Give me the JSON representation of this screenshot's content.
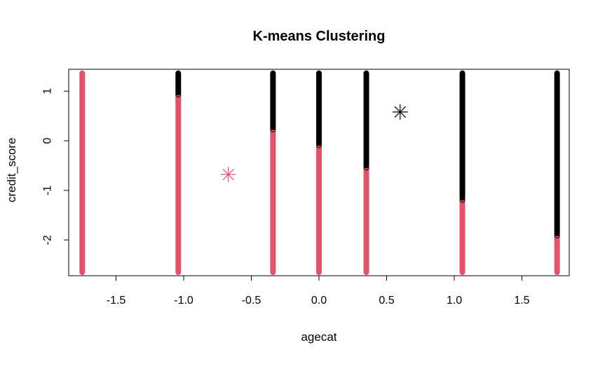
{
  "chart_data": {
    "type": "scatter",
    "title": "K-means Clustering",
    "xlabel": "agecat",
    "ylabel": "credit_score",
    "xlim": [
      -1.85,
      1.85
    ],
    "ylim": [
      -2.72,
      1.44
    ],
    "grid": false,
    "x_ticks": [
      -1.5,
      -1.0,
      -0.5,
      0.0,
      0.5,
      1.0,
      1.5
    ],
    "x_tick_labels": [
      "-1.5",
      "-1.0",
      "-0.5",
      "0.0",
      "0.5",
      "1.0",
      "1.5"
    ],
    "y_ticks": [
      -2,
      -1,
      0,
      1
    ],
    "y_tick_labels": [
      "-2",
      "-1",
      "0",
      "1"
    ],
    "colors": {
      "cluster_1": "#df536b",
      "cluster_2": "#000000",
      "axis": "#000000"
    },
    "point_columns": [
      {
        "x": -1.75,
        "y_min": -2.65,
        "y_max": 1.36,
        "split": 1.36
      },
      {
        "x": -1.04,
        "y_min": -2.65,
        "y_max": 1.36,
        "split": 0.97
      },
      {
        "x": -0.34,
        "y_min": -2.65,
        "y_max": 1.36,
        "split": 0.27
      },
      {
        "x": 0.0,
        "y_min": -2.65,
        "y_max": 1.36,
        "split": -0.05
      },
      {
        "x": 0.35,
        "y_min": -2.65,
        "y_max": 1.36,
        "split": -0.5
      },
      {
        "x": 1.06,
        "y_min": -2.65,
        "y_max": 1.36,
        "split": -1.15
      },
      {
        "x": 1.76,
        "y_min": -2.65,
        "y_max": 1.36,
        "split": -1.87
      }
    ],
    "centers": [
      {
        "cluster": 1,
        "x": -0.67,
        "y": -0.68
      },
      {
        "cluster": 2,
        "x": 0.6,
        "y": 0.58
      }
    ]
  }
}
